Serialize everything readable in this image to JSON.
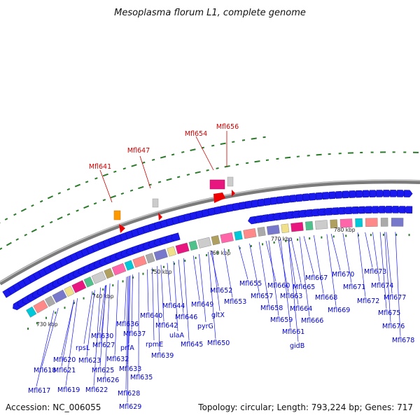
{
  "title": "Mesoplasma florum L1, complete genome",
  "footer": {
    "accession": "Accession: NC_006055",
    "topology": "Topology: circular; Length: 793,224 bp; Genes: 717"
  },
  "scale_labels": [
    "730 kbp",
    "740 kbp",
    "750 kbp",
    "760 kbp",
    "770 kbp",
    "780 kbp"
  ],
  "rna_genes": [
    "Mfl641",
    "Mfl647",
    "Mfl654",
    "Mfl656"
  ],
  "gene_labels": [
    "Mfl617",
    "Mfl618",
    "Mfl619",
    "Mfl620",
    "Mfl621",
    "Mfl622",
    "Mfl623",
    "rpsL",
    "Mfl625",
    "Mfl626",
    "Mfl627",
    "Mfl628",
    "Mfl629",
    "Mfl630",
    "Mfl632",
    "Mfl633",
    "prfA",
    "Mfl635",
    "Mfl636",
    "Mfl637",
    "rpmE",
    "Mfl639",
    "Mfl640",
    "Mfl642",
    "ulaA",
    "Mfl644",
    "Mfl645",
    "Mfl646",
    "Mfl649",
    "pyrG",
    "Mfl650",
    "Mfl652",
    "gltX",
    "Mfl653",
    "Mfl655",
    "Mfl657",
    "Mfl658",
    "Mfl659",
    "Mfl660",
    "Mfl661",
    "gidB",
    "Mfl663",
    "Mfl664",
    "Mfl665",
    "Mfl666",
    "Mfl667",
    "Mfl668",
    "Mfl669",
    "Mfl670",
    "Mfl671",
    "Mfl672",
    "Mfl673",
    "Mfl674",
    "Mfl675",
    "Mfl676",
    "Mfl677",
    "Mfl678"
  ],
  "colors": {
    "backbone": "#888888",
    "forward_arrows": "#1a1aee",
    "tick_marks": "#2a7a2a",
    "rna_label": "#cc0000",
    "gene_label": "#0000cc"
  }
}
